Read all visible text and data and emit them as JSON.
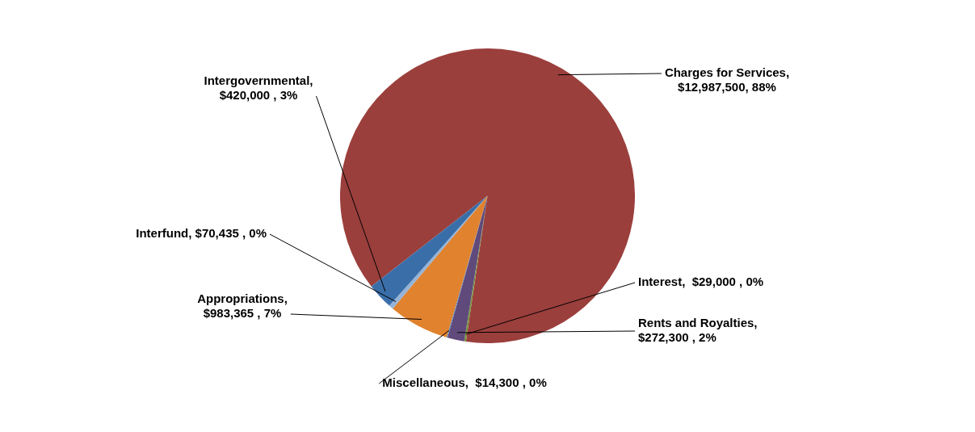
{
  "chart_data": {
    "type": "pie",
    "categories": [
      "Charges for Services",
      "Interest",
      "Rents and Royalties",
      "Miscellaneous",
      "Appropriations",
      "Interfund",
      "Intergovernmental"
    ],
    "values": [
      12987500,
      29000,
      272300,
      14300,
      983365,
      70435,
      420000
    ],
    "value_labels": [
      ", $12,987,500, 88%",
      ",  $29,000 , 0%",
      ", $272,300 , 2%",
      ",  $14,300 , 0%",
      ", $983,365 , 7%",
      ", $70,435 , 0%",
      ", $420,000 , 3%"
    ],
    "colors": [
      "#9b3f3c",
      "#77933c",
      "#604a7b",
      "#4f81bd",
      "#e0822e",
      "#95b3d7",
      "#3a6ea8"
    ],
    "legend": false
  }
}
